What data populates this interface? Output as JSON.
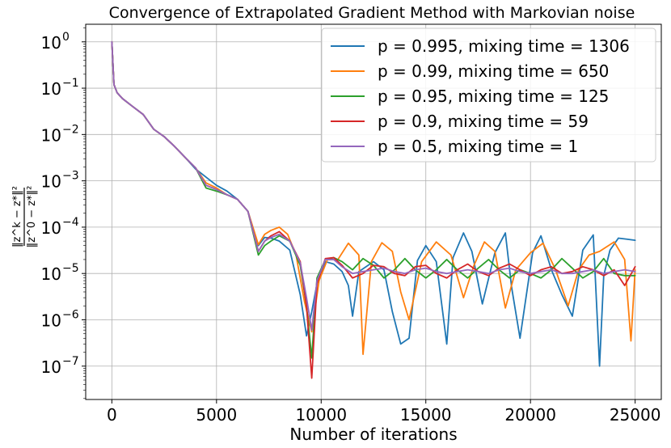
{
  "chart_data": {
    "type": "line",
    "title": "Convergence of Extrapolated Gradient Method with Markovian noise",
    "xlabel": "Number of iterations",
    "ylabel_num": "‖z^k − z*‖²",
    "ylabel_den": "‖z^0 − z*‖²",
    "y_scale": "log",
    "xlim": [
      -1250,
      26250
    ],
    "ylim_exp": [
      -7.72,
      0.38
    ],
    "grid": true,
    "legend_position": "top-right",
    "x_ticks": [
      0,
      5000,
      10000,
      15000,
      20000,
      25000
    ],
    "x_tick_labels": [
      "0",
      "5000",
      "10000",
      "15000",
      "20000",
      "25000"
    ],
    "y_ticks_exp": [
      0,
      -1,
      -2,
      -3,
      -4,
      -5,
      -6,
      -7
    ],
    "y_tick_labels": [
      "10",
      "10",
      "10",
      "10",
      "10",
      "10",
      "10",
      "10"
    ],
    "y_tick_exponents": [
      "0",
      "−1",
      "−2",
      "−3",
      "−4",
      "−5",
      "−6",
      "−7"
    ],
    "series": [
      {
        "name": "p = 0.995, mixing time = 1306",
        "color": "#1f77b4",
        "x": [
          0,
          100,
          250,
          500,
          1000,
          1500,
          2000,
          2500,
          3000,
          3500,
          4000,
          4500,
          5000,
          5500,
          6000,
          6500,
          7000,
          7300,
          7600,
          8000,
          8500,
          9000,
          9300,
          9550,
          9800,
          10200,
          10600,
          11000,
          11300,
          11500,
          11800,
          12500,
          13000,
          13400,
          13800,
          14200,
          14600,
          15000,
          15500,
          16000,
          16300,
          16800,
          17200,
          17700,
          18300,
          18800,
          19100,
          19500,
          20100,
          20500,
          21000,
          21500,
          22000,
          22500,
          23000,
          23300,
          23500,
          23800,
          24200,
          24600,
          25000
        ],
        "y": [
          1.0,
          0.12,
          0.08,
          0.06,
          0.04,
          0.027,
          0.013,
          0.009,
          0.0055,
          0.0032,
          0.0018,
          0.0012,
          0.0008,
          0.0006,
          0.0004,
          0.00022,
          4e-05,
          6e-05,
          5.8e-05,
          5e-05,
          3.2e-05,
          3.5e-06,
          4.5e-07,
          1.5e-06,
          6e-06,
          1.8e-05,
          1.6e-05,
          1.1e-05,
          5.5e-06,
          1.2e-06,
          1.1e-05,
          1.8e-05,
          1.2e-05,
          1.5e-06,
          3e-07,
          4e-07,
          1.9e-05,
          4e-05,
          1.8e-05,
          3e-07,
          2.2e-05,
          7.5e-05,
          3e-05,
          2.2e-06,
          2.8e-05,
          7.5e-05,
          5e-06,
          4e-07,
          2.8e-05,
          6.5e-05,
          1.2e-05,
          3.5e-06,
          1.2e-06,
          3.2e-05,
          6.8e-05,
          1e-07,
          9e-06,
          3.2e-05,
          5.8e-05,
          5.5e-05,
          5.2e-05
        ]
      },
      {
        "name": "p = 0.99, mixing time = 650",
        "color": "#ff7f0e",
        "x": [
          0,
          100,
          250,
          500,
          1000,
          1500,
          2000,
          2500,
          3000,
          3500,
          4000,
          4500,
          5000,
          5500,
          6000,
          6500,
          7000,
          7300,
          7600,
          8000,
          8400,
          8800,
          9200,
          9550,
          9900,
          10300,
          10800,
          11300,
          11800,
          12000,
          12400,
          12900,
          13400,
          13800,
          14200,
          14800,
          15500,
          16200,
          16800,
          17300,
          17800,
          18300,
          18800,
          19300,
          20000,
          20600,
          21200,
          21800,
          22300,
          22800,
          23300,
          24000,
          24500,
          24800,
          25000
        ],
        "y": [
          1.0,
          0.12,
          0.08,
          0.06,
          0.04,
          0.027,
          0.013,
          0.009,
          0.0055,
          0.0032,
          0.0019,
          0.0009,
          0.0007,
          0.0005,
          0.0004,
          0.00022,
          4.2e-05,
          7e-05,
          8.5e-05,
          0.0001,
          7e-05,
          2.5e-05,
          2.5e-06,
          5.5e-07,
          7e-06,
          2e-05,
          2e-05,
          4.5e-05,
          2.5e-05,
          1.8e-07,
          1.8e-05,
          4.6e-05,
          3e-05,
          4e-06,
          1e-06,
          1.8e-05,
          4.8e-05,
          2.5e-05,
          3e-06,
          1.5e-05,
          4.8e-05,
          3e-05,
          1.8e-06,
          1.2e-05,
          2.8e-05,
          4.5e-05,
          1.2e-05,
          2e-06,
          1.2e-05,
          2.5e-05,
          3e-05,
          4.8e-05,
          2e-05,
          3.5e-07,
          1.2e-05
        ]
      },
      {
        "name": "p = 0.95, mixing time = 125",
        "color": "#2ca02c",
        "x": [
          0,
          100,
          250,
          500,
          1000,
          1500,
          2000,
          2500,
          3000,
          3500,
          4000,
          4500,
          5000,
          5500,
          6000,
          6500,
          7000,
          7300,
          7600,
          8000,
          8500,
          9000,
          9300,
          9550,
          9800,
          10200,
          10600,
          11000,
          11500,
          12000,
          12500,
          13000,
          13500,
          14000,
          14500,
          15000,
          15500,
          16000,
          16500,
          17000,
          17500,
          18000,
          18500,
          19000,
          19500,
          20000,
          20500,
          21000,
          21500,
          22000,
          22500,
          23000,
          23500,
          24000,
          24500,
          25000
        ],
        "y": [
          1.0,
          0.12,
          0.08,
          0.06,
          0.04,
          0.027,
          0.013,
          0.009,
          0.0055,
          0.0032,
          0.0019,
          0.0007,
          0.0006,
          0.0005,
          0.0004,
          0.00022,
          2.5e-05,
          4e-05,
          5e-05,
          6.5e-05,
          5e-05,
          1.5e-05,
          2e-06,
          1.5e-07,
          8e-06,
          2e-05,
          2.2e-05,
          1.8e-05,
          1.2e-05,
          2.1e-05,
          1.5e-05,
          8e-06,
          1.2e-05,
          2.1e-05,
          1.2e-05,
          8e-06,
          1.2e-05,
          2e-05,
          1.2e-05,
          8e-06,
          1.3e-05,
          2e-05,
          1.2e-05,
          8e-06,
          1.2e-05,
          1e-05,
          8e-06,
          1.2e-05,
          2.1e-05,
          1.3e-05,
          8e-06,
          1.1e-05,
          2.1e-05,
          1e-05,
          9e-06,
          9e-06
        ]
      },
      {
        "name": "p = 0.9, mixing time = 59",
        "color": "#d62728",
        "x": [
          0,
          100,
          250,
          500,
          1000,
          1500,
          2000,
          2500,
          3000,
          3500,
          4000,
          4500,
          5000,
          5500,
          6000,
          6500,
          7000,
          7300,
          7600,
          8000,
          8500,
          9000,
          9300,
          9550,
          9800,
          10200,
          10600,
          11000,
          11500,
          12000,
          12500,
          13000,
          13500,
          14000,
          14500,
          15000,
          15500,
          16000,
          16500,
          17000,
          17500,
          18000,
          18500,
          19000,
          19500,
          20000,
          20500,
          21000,
          21500,
          22000,
          22500,
          23000,
          23500,
          24000,
          24500,
          25000
        ],
        "y": [
          1.0,
          0.12,
          0.08,
          0.06,
          0.04,
          0.027,
          0.013,
          0.009,
          0.0055,
          0.0032,
          0.0019,
          0.0008,
          0.00065,
          0.0005,
          0.0004,
          0.00022,
          3e-05,
          5e-05,
          6.5e-05,
          8e-05,
          5e-05,
          1.8e-05,
          2e-06,
          5.5e-08,
          6e-06,
          2.1e-05,
          2.2e-05,
          1.5e-05,
          8e-06,
          1e-05,
          1.5e-05,
          1.4e-05,
          1e-05,
          9e-06,
          1.4e-05,
          1.5e-05,
          1e-05,
          8e-06,
          1.2e-05,
          1.6e-05,
          1.1e-05,
          9e-06,
          1.3e-05,
          1.6e-05,
          1.2e-05,
          9e-06,
          1.2e-05,
          1.4e-05,
          1e-05,
          1.1e-05,
          1.4e-05,
          1.2e-05,
          9e-06,
          1.2e-05,
          5.5e-06,
          1.4e-05
        ]
      },
      {
        "name": "p = 0.5, mixing time = 1",
        "color": "#9467bd",
        "x": [
          0,
          100,
          250,
          500,
          1000,
          1500,
          2000,
          2500,
          3000,
          3500,
          4000,
          4500,
          5000,
          5500,
          6000,
          6500,
          7000,
          7300,
          7600,
          8000,
          8500,
          9000,
          9300,
          9550,
          9800,
          10200,
          10600,
          11000,
          11500,
          12000,
          12500,
          13000,
          13500,
          14000,
          14500,
          15000,
          15500,
          16000,
          16500,
          17000,
          17500,
          18000,
          18500,
          19000,
          19500,
          20000,
          20500,
          21000,
          21500,
          22000,
          22500,
          23000,
          23500,
          24000,
          24500,
          25000
        ],
        "y": [
          1.0,
          0.12,
          0.08,
          0.06,
          0.04,
          0.027,
          0.013,
          0.009,
          0.0055,
          0.0032,
          0.0019,
          0.0008,
          0.00065,
          0.0005,
          0.0004,
          0.00022,
          3e-05,
          5e-05,
          6e-05,
          7e-05,
          5e-05,
          1.7e-05,
          3e-06,
          6e-07,
          7e-06,
          2e-05,
          2e-05,
          1.4e-05,
          1e-05,
          1.1e-05,
          1.2e-05,
          1.3e-05,
          1.1e-05,
          1e-05,
          1.2e-05,
          1.3e-05,
          1.1e-05,
          1e-05,
          1.1e-05,
          1.2e-05,
          1.1e-05,
          1e-05,
          1.2e-05,
          1.3e-05,
          1.1e-05,
          1e-05,
          1.1e-05,
          1.2e-05,
          1e-05,
          1e-05,
          1.1e-05,
          1.2e-05,
          1e-05,
          1.1e-05,
          1.2e-05,
          1.1e-05
        ]
      }
    ]
  }
}
